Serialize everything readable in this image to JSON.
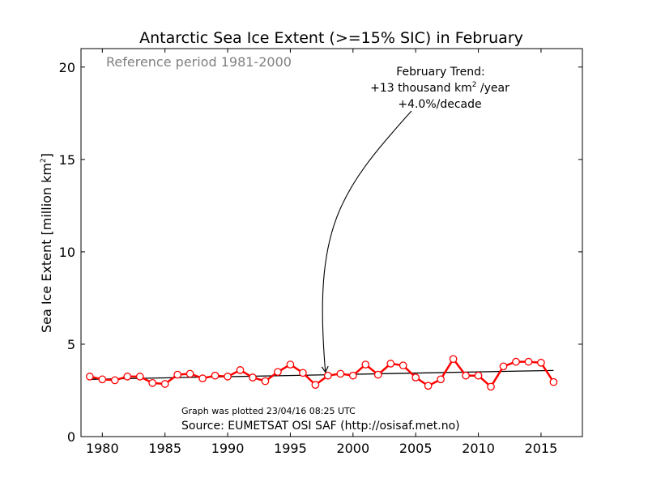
{
  "chart_data": {
    "type": "line",
    "title": "Antarctic Sea Ice Extent (>=15% SIC) in February",
    "ylabel_main": "Sea Ice Extent [million km",
    "ylabel_sup": "2",
    "ylabel_tail": "]",
    "xlim": [
      1978.3,
      2018.3
    ],
    "ylim": [
      0,
      21
    ],
    "x_ticks": [
      1980,
      1985,
      1990,
      1995,
      2000,
      2005,
      2010,
      2015
    ],
    "y_ticks": [
      0,
      5,
      10,
      15,
      20
    ],
    "series": [
      {
        "color": "#ff0000",
        "marker": "open-circle",
        "x": [
          1979,
          1980,
          1981,
          1982,
          1983,
          1984,
          1985,
          1986,
          1987,
          1988,
          1989,
          1990,
          1991,
          1992,
          1993,
          1994,
          1995,
          1996,
          1997,
          1998,
          1999,
          2000,
          2001,
          2002,
          2003,
          2004,
          2005,
          2006,
          2007,
          2008,
          2009,
          2010,
          2011,
          2012,
          2013,
          2014,
          2015,
          2016
        ],
        "values": [
          3.25,
          3.1,
          3.05,
          3.25,
          3.25,
          2.9,
          2.85,
          3.35,
          3.4,
          3.15,
          3.3,
          3.25,
          3.6,
          3.2,
          3.0,
          3.5,
          3.9,
          3.45,
          2.8,
          3.3,
          3.4,
          3.3,
          3.9,
          3.35,
          3.95,
          3.85,
          3.2,
          2.75,
          3.1,
          4.2,
          3.3,
          3.3,
          2.7,
          3.8,
          4.05,
          4.05,
          4.0,
          2.95
        ]
      }
    ],
    "trend_line": {
      "color": "#000000",
      "x": [
        1979,
        2016
      ],
      "values": [
        3.1,
        3.58
      ]
    },
    "reference_note": "Reference period 1981-2000",
    "annotation": {
      "line1": "February Trend:",
      "line2_pre": "+13 thousand km",
      "line2_sup": "2",
      "line2_post": " /year",
      "line3": "+4.0%/decade",
      "arrow_target": {
        "x": 1997.8,
        "y": 3.4
      }
    },
    "plotted_note": "Graph was plotted 23/04/16 08:25 UTC",
    "source_note": "Source: EUMETSAT OSI SAF (http://osisaf.met.no)",
    "grid": false,
    "legend": "none"
  }
}
